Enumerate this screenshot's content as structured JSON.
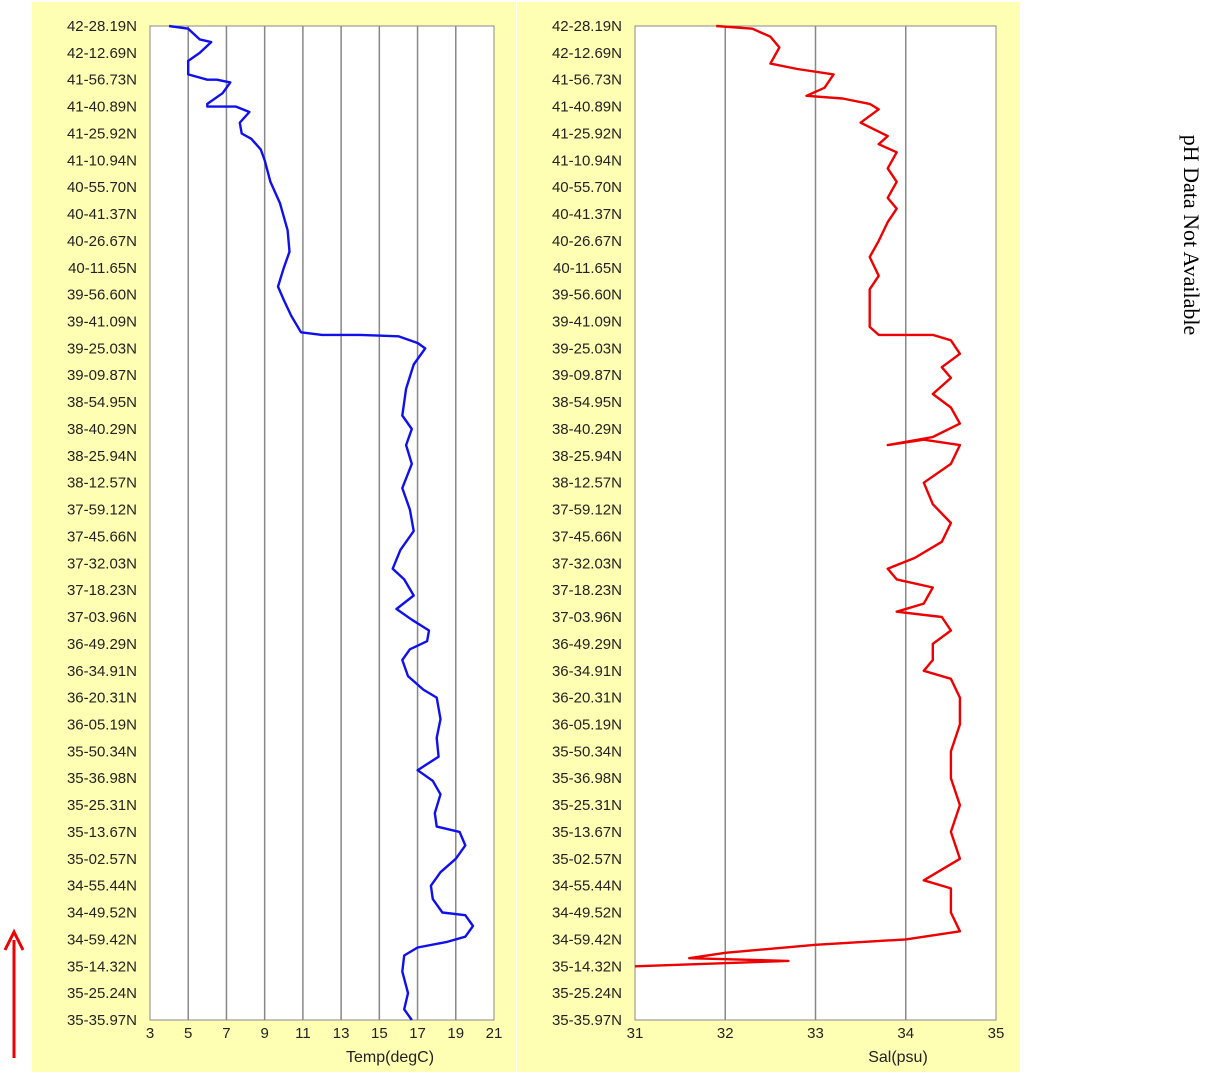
{
  "note": "pH Data Not Available",
  "colors": {
    "panel_bg": "#ffffb3",
    "plot_bg": "#ffffff",
    "temp_line": "#1010ee",
    "sal_line": "#ee0000",
    "grid": "#888888",
    "arrow": "#ee0000"
  },
  "latitude_labels": [
    "42-28.19N",
    "42-12.69N",
    "41-56.73N",
    "41-40.89N",
    "41-25.92N",
    "41-10.94N",
    "40-55.70N",
    "40-41.37N",
    "40-26.67N",
    "40-11.65N",
    "39-56.60N",
    "39-41.09N",
    "39-25.03N",
    "39-09.87N",
    "38-54.95N",
    "38-40.29N",
    "38-25.94N",
    "38-12.57N",
    "37-59.12N",
    "37-45.66N",
    "37-32.03N",
    "37-18.23N",
    "37-03.96N",
    "36-49.29N",
    "36-34.91N",
    "36-20.31N",
    "36-05.19N",
    "35-50.34N",
    "35-36.98N",
    "35-25.31N",
    "35-13.67N",
    "35-02.57N",
    "34-55.44N",
    "34-49.52N",
    "34-59.42N",
    "35-14.32N",
    "35-25.24N",
    "35-35.97N"
  ],
  "chart_data": [
    {
      "type": "line",
      "orientation": "horizontal-value",
      "xlabel": "Temp(degC)",
      "xlim": [
        3,
        21
      ],
      "xticks": [
        3,
        5,
        7,
        9,
        11,
        13,
        15,
        17,
        19,
        21
      ],
      "grid": true,
      "series": [
        {
          "color": "#1010ee",
          "points": [
            [
              4.0,
              0
            ],
            [
              5.0,
              0.1
            ],
            [
              5.6,
              0.5
            ],
            [
              6.2,
              0.6
            ],
            [
              5.6,
              1.0
            ],
            [
              5.0,
              1.3
            ],
            [
              5.0,
              1.8
            ],
            [
              6.0,
              2.0
            ],
            [
              6.5,
              2.0
            ],
            [
              7.2,
              2.1
            ],
            [
              6.8,
              2.5
            ],
            [
              6.0,
              2.9
            ],
            [
              6.0,
              3.0
            ],
            [
              7.0,
              3.0
            ],
            [
              7.5,
              3.0
            ],
            [
              8.2,
              3.2
            ],
            [
              7.7,
              3.6
            ],
            [
              7.8,
              4.0
            ],
            [
              8.3,
              4.2
            ],
            [
              8.8,
              4.6
            ],
            [
              9.0,
              5.0
            ],
            [
              9.3,
              5.8
            ],
            [
              9.8,
              6.6
            ],
            [
              10.2,
              7.6
            ],
            [
              10.3,
              8.4
            ],
            [
              10.0,
              9.0
            ],
            [
              9.7,
              9.7
            ],
            [
              10.0,
              10.2
            ],
            [
              10.4,
              10.8
            ],
            [
              10.9,
              11.4
            ],
            [
              12.0,
              11.5
            ],
            [
              14.0,
              11.5
            ],
            [
              16.0,
              11.55
            ],
            [
              17.0,
              11.8
            ],
            [
              17.4,
              12.0
            ],
            [
              16.8,
              12.6
            ],
            [
              16.4,
              13.5
            ],
            [
              16.2,
              14.5
            ],
            [
              16.7,
              15.0
            ],
            [
              16.4,
              15.6
            ],
            [
              16.7,
              16.3
            ],
            [
              16.2,
              17.2
            ],
            [
              16.6,
              18.0
            ],
            [
              16.8,
              18.8
            ],
            [
              16.1,
              19.5
            ],
            [
              15.7,
              20.2
            ],
            [
              16.3,
              20.6
            ],
            [
              16.8,
              21.2
            ],
            [
              15.9,
              21.7
            ],
            [
              16.7,
              22.1
            ],
            [
              17.6,
              22.5
            ],
            [
              17.5,
              22.9
            ],
            [
              16.6,
              23.2
            ],
            [
              16.2,
              23.6
            ],
            [
              16.5,
              24.2
            ],
            [
              17.3,
              24.7
            ],
            [
              18.0,
              25.0
            ],
            [
              18.2,
              25.8
            ],
            [
              18.0,
              26.5
            ],
            [
              18.1,
              27.2
            ],
            [
              17.0,
              27.7
            ],
            [
              17.8,
              28.1
            ],
            [
              18.2,
              28.6
            ],
            [
              17.9,
              29.3
            ],
            [
              18.0,
              29.8
            ],
            [
              19.2,
              30.0
            ],
            [
              19.5,
              30.5
            ],
            [
              19.0,
              31.0
            ],
            [
              18.2,
              31.5
            ],
            [
              17.7,
              32.0
            ],
            [
              17.8,
              32.5
            ],
            [
              18.3,
              33.0
            ],
            [
              19.5,
              33.1
            ],
            [
              19.9,
              33.5
            ],
            [
              19.5,
              33.9
            ],
            [
              18.5,
              34.1
            ],
            [
              17.0,
              34.3
            ],
            [
              16.3,
              34.6
            ],
            [
              16.2,
              35.2
            ],
            [
              16.5,
              36.0
            ],
            [
              16.3,
              36.6
            ],
            [
              16.7,
              37.0
            ]
          ]
        }
      ]
    },
    {
      "type": "line",
      "orientation": "horizontal-value",
      "xlabel": "Sal(psu)",
      "xlim": [
        31,
        35
      ],
      "xticks": [
        31,
        32,
        33,
        34,
        35
      ],
      "grid": true,
      "series": [
        {
          "color": "#ee0000",
          "points": [
            [
              31.9,
              0
            ],
            [
              32.3,
              0.1
            ],
            [
              32.5,
              0.4
            ],
            [
              32.6,
              0.8
            ],
            [
              32.5,
              1.4
            ],
            [
              32.8,
              1.6
            ],
            [
              33.2,
              1.8
            ],
            [
              33.1,
              2.3
            ],
            [
              32.9,
              2.6
            ],
            [
              33.3,
              2.7
            ],
            [
              33.6,
              2.9
            ],
            [
              33.7,
              3.1
            ],
            [
              33.5,
              3.6
            ],
            [
              33.8,
              4.1
            ],
            [
              33.7,
              4.4
            ],
            [
              33.9,
              4.7
            ],
            [
              33.8,
              5.3
            ],
            [
              33.9,
              5.8
            ],
            [
              33.8,
              6.4
            ],
            [
              33.9,
              6.8
            ],
            [
              33.8,
              7.3
            ],
            [
              33.7,
              8.0
            ],
            [
              33.6,
              8.6
            ],
            [
              33.7,
              9.3
            ],
            [
              33.6,
              9.8
            ],
            [
              33.6,
              10.6
            ],
            [
              33.6,
              11.2
            ],
            [
              33.7,
              11.5
            ],
            [
              34.3,
              11.5
            ],
            [
              34.5,
              11.7
            ],
            [
              34.6,
              12.2
            ],
            [
              34.4,
              12.7
            ],
            [
              34.5,
              13.1
            ],
            [
              34.3,
              13.7
            ],
            [
              34.5,
              14.2
            ],
            [
              34.6,
              14.8
            ],
            [
              34.3,
              15.3
            ],
            [
              33.8,
              15.6
            ],
            [
              34.2,
              15.4
            ],
            [
              34.6,
              15.6
            ],
            [
              34.5,
              16.3
            ],
            [
              34.2,
              17.0
            ],
            [
              34.3,
              17.8
            ],
            [
              34.5,
              18.5
            ],
            [
              34.4,
              19.2
            ],
            [
              34.1,
              19.8
            ],
            [
              33.8,
              20.2
            ],
            [
              33.9,
              20.6
            ],
            [
              34.3,
              20.9
            ],
            [
              34.2,
              21.5
            ],
            [
              33.9,
              21.8
            ],
            [
              34.4,
              22.0
            ],
            [
              34.5,
              22.5
            ],
            [
              34.3,
              23.0
            ],
            [
              34.3,
              23.6
            ],
            [
              34.2,
              24.0
            ],
            [
              34.5,
              24.3
            ],
            [
              34.6,
              25.0
            ],
            [
              34.6,
              26.0
            ],
            [
              34.5,
              27.0
            ],
            [
              34.5,
              28.0
            ],
            [
              34.6,
              29.0
            ],
            [
              34.5,
              30.0
            ],
            [
              34.6,
              31.0
            ],
            [
              34.2,
              31.8
            ],
            [
              34.5,
              32.1
            ],
            [
              34.5,
              33.0
            ],
            [
              34.6,
              33.7
            ],
            [
              34.0,
              34.0
            ],
            [
              33.0,
              34.2
            ],
            [
              32.0,
              34.5
            ],
            [
              31.6,
              34.7
            ],
            [
              32.7,
              34.8
            ],
            [
              31.0,
              35.0
            ]
          ]
        }
      ]
    }
  ]
}
